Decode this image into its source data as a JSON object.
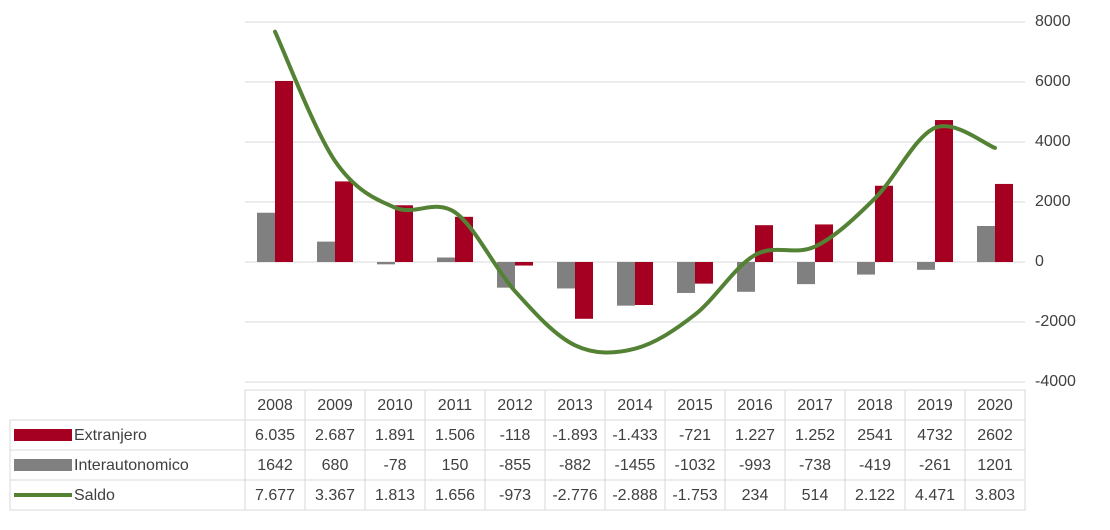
{
  "chart_data": {
    "type": "bar_line_table",
    "categories": [
      "2008",
      "2009",
      "2010",
      "2011",
      "2012",
      "2013",
      "2014",
      "2015",
      "2016",
      "2017",
      "2018",
      "2019",
      "2020"
    ],
    "series": [
      {
        "name": "Extranjero",
        "color": "#a50021",
        "chart": "bar",
        "values": [
          6035,
          2687,
          1891,
          1506,
          -118,
          -1893,
          -1433,
          -721,
          1227,
          1252,
          2541,
          4732,
          2602
        ],
        "value_labels": [
          "6.035",
          "2.687",
          "1.891",
          "1.506",
          "-118",
          "-1.893",
          "-1.433",
          "-721",
          "1.227",
          "1.252",
          "2541",
          "4732",
          "2602"
        ]
      },
      {
        "name": "Interautonomico",
        "color": "#808080",
        "chart": "bar",
        "values": [
          1642,
          680,
          -78,
          150,
          -855,
          -882,
          -1455,
          -1032,
          -993,
          -738,
          -419,
          -261,
          1201
        ]
      },
      {
        "name": "Saldo",
        "color": "#548235",
        "chart": "line",
        "values": [
          7677,
          3367,
          1813,
          1656,
          -973,
          -2776,
          -2888,
          -1753,
          234,
          514,
          2122,
          4471,
          3803
        ],
        "value_labels": [
          "7.677",
          "3.367",
          "1.813",
          "1.656",
          "-973",
          "-2.776",
          "-2.888",
          "-1.753",
          "234",
          "514",
          "2.122",
          "4.471",
          "3.803"
        ]
      }
    ],
    "ylim": [
      -4000,
      8000
    ],
    "yticks": [
      -4000,
      -2000,
      0,
      2000,
      4000,
      6000,
      8000
    ],
    "grid": true
  }
}
